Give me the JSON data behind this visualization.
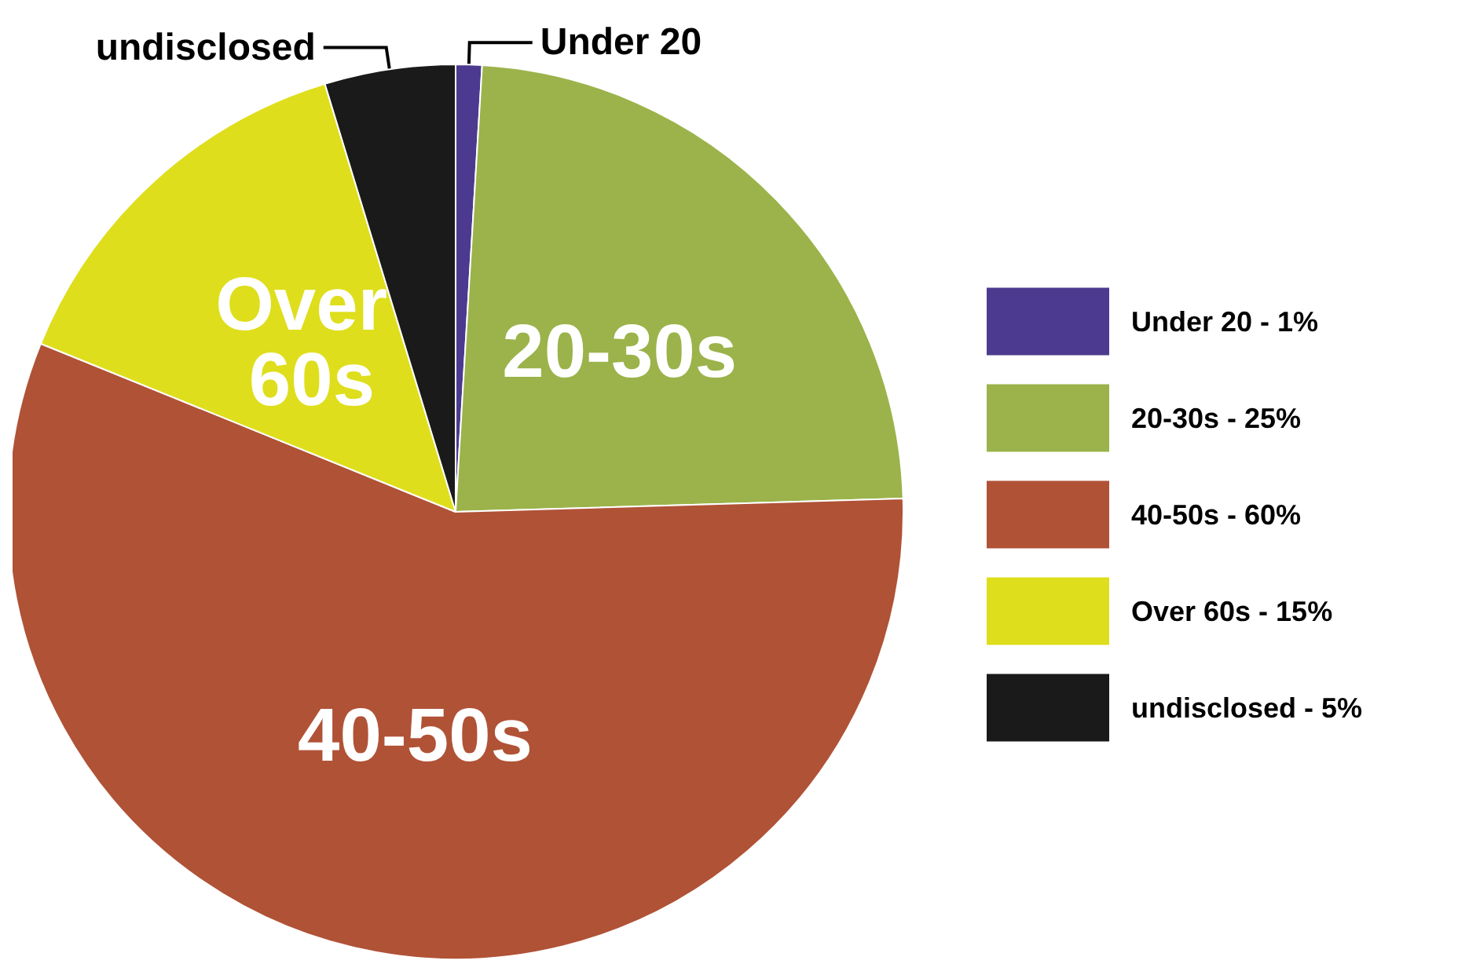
{
  "chart_data": {
    "type": "pie",
    "categories": [
      "Under 20",
      "20-30s",
      "40-50s",
      "Over 60s",
      "undisclosed"
    ],
    "values": [
      1,
      25,
      60,
      15,
      5
    ],
    "value_labels": [
      "1%",
      "25%",
      "60%",
      "15%",
      "5%"
    ],
    "colors": [
      "#4b3a8f",
      "#9bb34a",
      "#b05236",
      "#dede1c",
      "#1a1a1a"
    ],
    "annotations": [
      "-",
      "-",
      "-",
      "-",
      "-"
    ],
    "legend": "right"
  }
}
